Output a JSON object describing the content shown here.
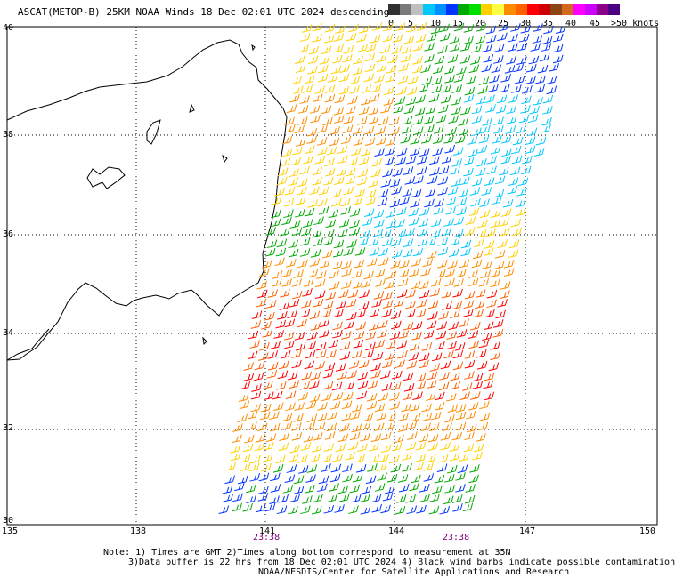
{
  "title": "ASCAT(METOP-B) 25KM NOAA Winds 18 Dec 02:01 UTC 2024 descending",
  "scale": {
    "colors": [
      "#303030",
      "#7a7a7a",
      "#bfbfbf",
      "#00c8ff",
      "#0090ff",
      "#0033ff",
      "#00aa00",
      "#00e000",
      "#ffd000",
      "#ffff44",
      "#ff8c00",
      "#ff6000",
      "#ff0000",
      "#cc0000",
      "#8b4513",
      "#d2691e",
      "#ff00ff",
      "#cc00ff",
      "#8b008b",
      "#4b0082"
    ],
    "labels": [
      "0",
      "5",
      "10",
      "15",
      "20",
      "25",
      "30",
      "35",
      "40",
      "45",
      ">50 knots"
    ]
  },
  "lat_labels": [
    "40",
    "38",
    "36",
    "34",
    "32",
    "30"
  ],
  "lon_labels": [
    "135",
    "138",
    "141",
    "144",
    "147",
    "150"
  ],
  "times": [
    "23:38",
    "23:38"
  ],
  "notes": [
    "Note: 1) Times are GMT 2)Times along bottom correspond to measurement at 35N",
    "3)Data buffer is 22 hrs from 18 Dec 02:01 UTC 2024 4) Black wind barbs indicate possible contamination",
    "NOAA/NESDIS/Center for Satellite Applications and Research"
  ]
}
